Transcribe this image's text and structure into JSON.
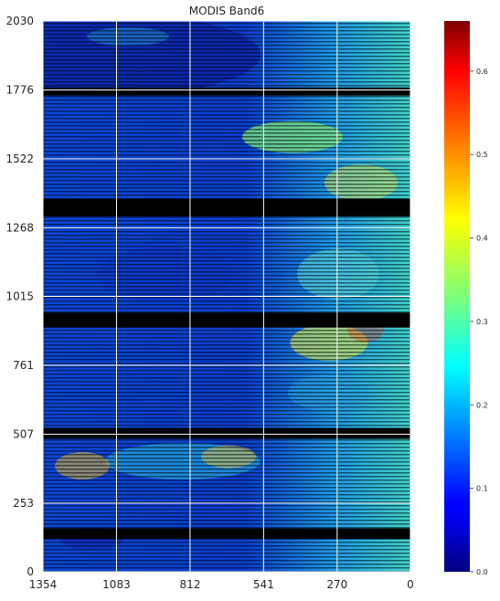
{
  "chart_data": {
    "type": "heatmap",
    "title": "MODIS Band6",
    "xlabel": "",
    "ylabel": "",
    "x_ticks": [
      "1354",
      "1083",
      "812",
      "541",
      "270",
      "0"
    ],
    "y_ticks": [
      "2030",
      "1776",
      "1522",
      "1268",
      "1015",
      "761",
      "507",
      "253",
      "0"
    ],
    "x_range": [
      1354,
      0
    ],
    "y_range": [
      0,
      2030
    ],
    "grid": true,
    "colormap": "jet",
    "colorbar": {
      "range": [
        0.0,
        0.66
      ],
      "ticks": [
        "0.0",
        "0.1",
        "0.2",
        "0.3",
        "0.4",
        "0.5",
        "0.6"
      ]
    },
    "no_data_bands_y": [
      [
        1755,
        1785
      ],
      [
        1310,
        1375
      ],
      [
        900,
        955
      ],
      [
        490,
        530
      ],
      [
        120,
        160
      ]
    ],
    "colors": {
      "no_data": "#000000",
      "grid": "#ffffff"
    }
  }
}
